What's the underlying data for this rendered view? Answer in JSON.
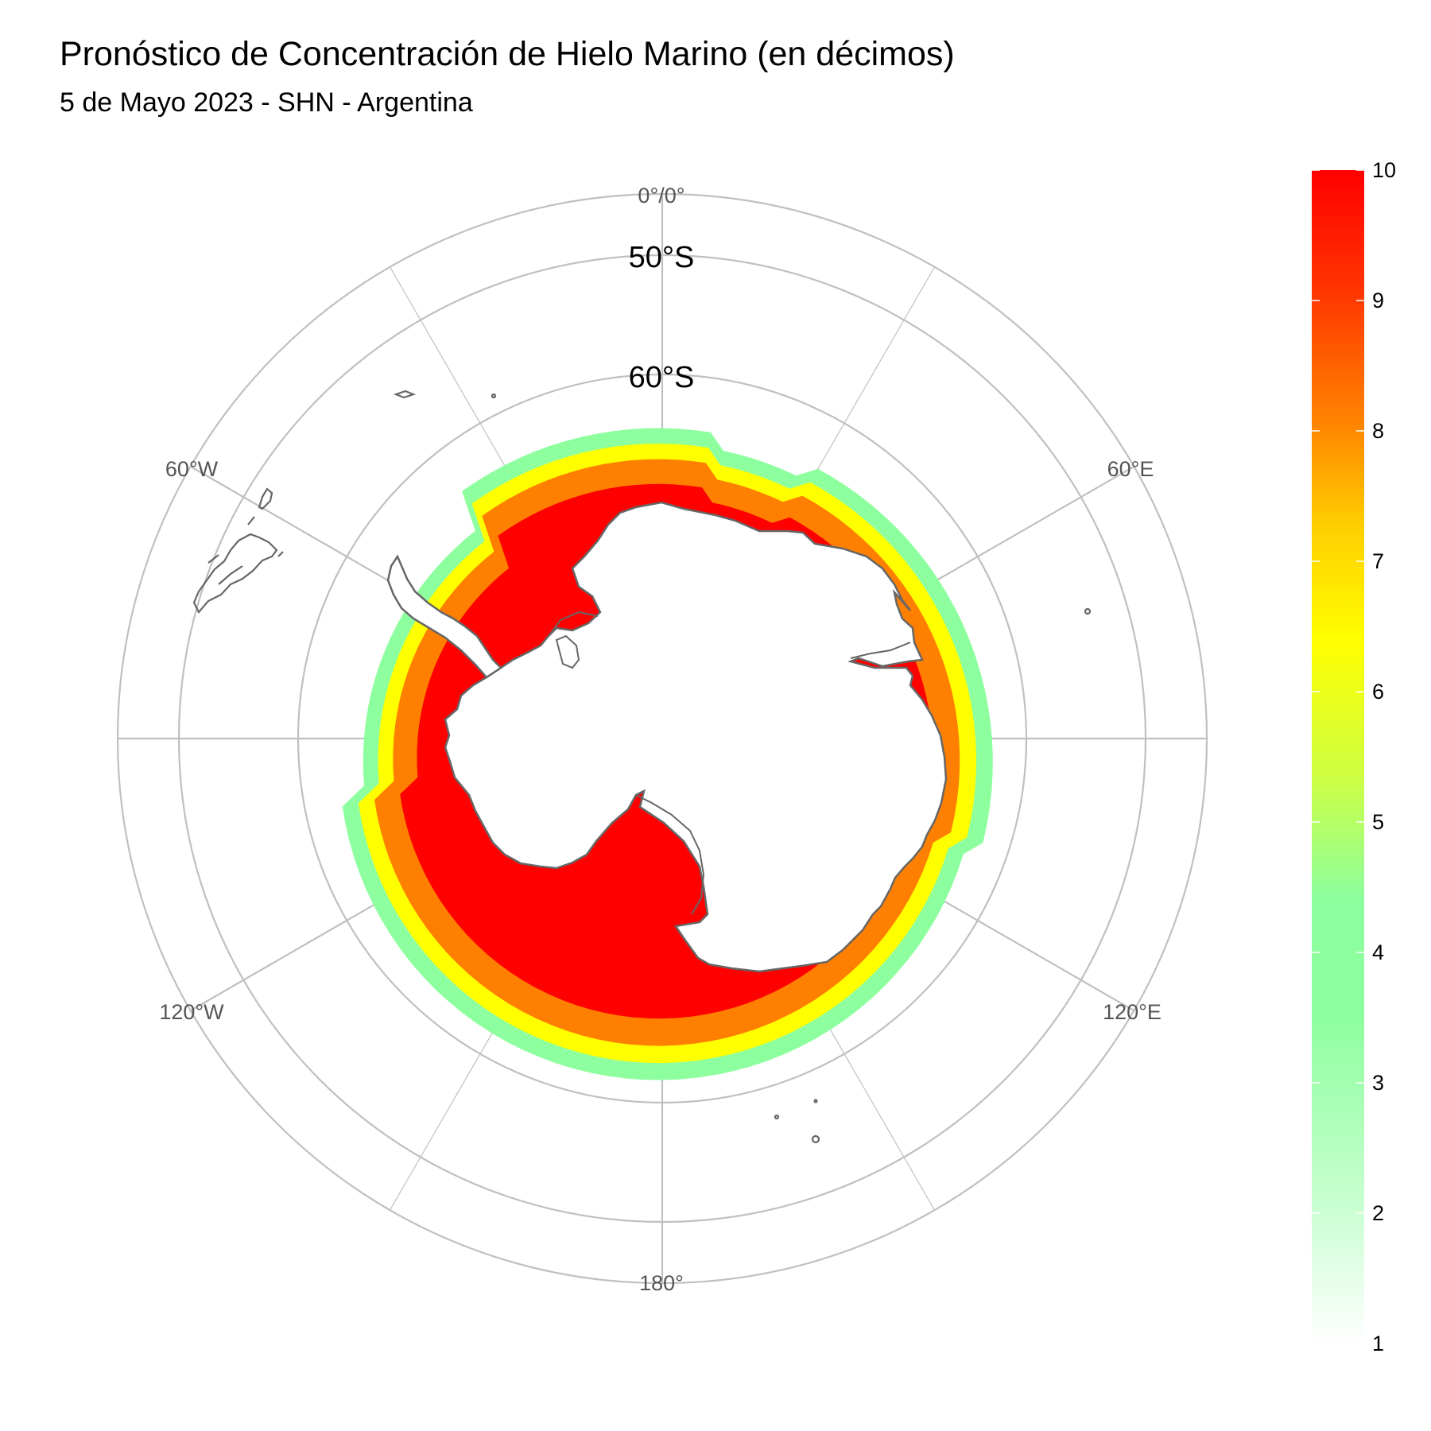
{
  "title": "Pronóstico de Concentración de Hielo Marino (en décimos)",
  "subtitle": "5 de Mayo 2023 - SHN - Argentina",
  "map": {
    "projection": "south polar stereographic",
    "longitude_labels": [
      "0°/0°",
      "60°E",
      "120°E",
      "180°",
      "120°W",
      "60°W"
    ],
    "latitude_labels": [
      "50°S",
      "60°S"
    ],
    "graticule_color": "#c0c0c0",
    "coastline_color": "#666666"
  },
  "legend": {
    "title": "",
    "min": 1,
    "max": 10,
    "ticks": [
      "10",
      "9",
      "8",
      "7",
      "6",
      "5",
      "4",
      "3",
      "2",
      "1"
    ],
    "colors": [
      "#ffffff",
      "#8dff9e",
      "#8dff9e",
      "#ffff00",
      "#ff7f00",
      "#ff0000"
    ]
  },
  "ice_concentration_bands": [
    {
      "range": "2-4",
      "color": "#8dff9e"
    },
    {
      "range": "5-7",
      "color": "#ffff00"
    },
    {
      "range": "7-9",
      "color": "#ff7f00"
    },
    {
      "range": "9-10",
      "color": "#ff0000"
    }
  ]
}
